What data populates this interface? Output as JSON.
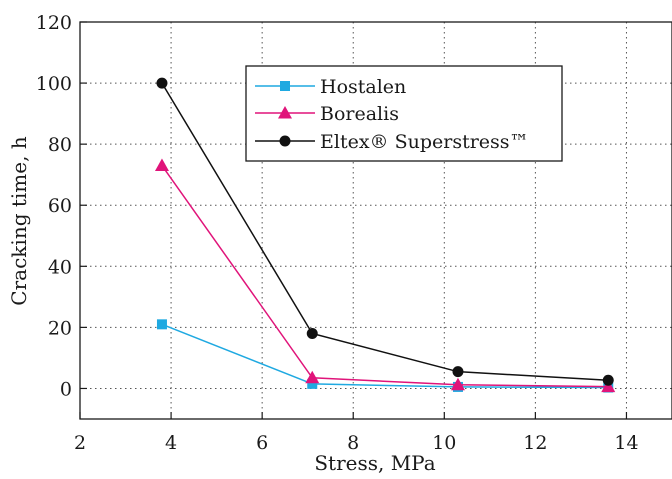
{
  "chart_data": {
    "type": "line",
    "xlabel": "Stress, MPa",
    "ylabel": "Cracking time, h",
    "xlim": [
      2,
      15
    ],
    "ylim": [
      -10,
      120
    ],
    "xticks": [
      2,
      4,
      6,
      8,
      10,
      12,
      14
    ],
    "yticks": [
      0,
      20,
      40,
      60,
      80,
      100,
      120
    ],
    "grid": true,
    "legend_position": "top-right",
    "series": [
      {
        "name": "Hostalen",
        "color": "#1fa9e1",
        "marker": "square",
        "x": [
          3.8,
          7.1,
          10.3,
          13.6
        ],
        "y": [
          21,
          1.5,
          0.5,
          0.3
        ]
      },
      {
        "name": "Borealis",
        "color": "#e0147a",
        "marker": "triangle",
        "x": [
          3.8,
          7.1,
          10.3,
          13.6
        ],
        "y": [
          73,
          3.5,
          1.2,
          0.6
        ]
      },
      {
        "name": "Eltex® Superstress™",
        "color": "#111111",
        "marker": "circle",
        "x": [
          3.8,
          7.1,
          10.3,
          13.6
        ],
        "y": [
          100,
          18,
          5.5,
          2.7
        ]
      }
    ]
  }
}
